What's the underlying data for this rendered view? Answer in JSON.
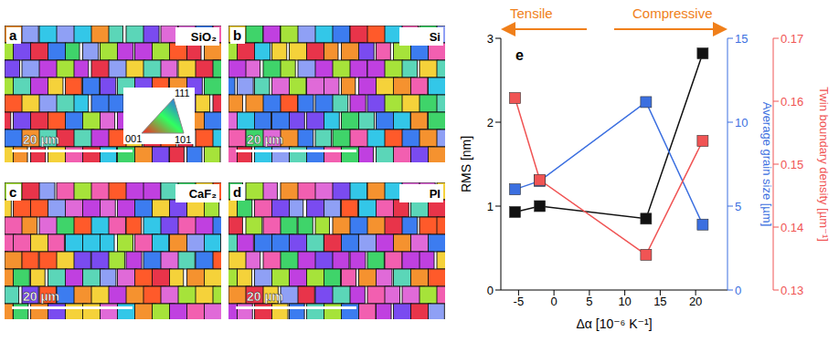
{
  "chart_data": {
    "type": "scatter",
    "title": "e",
    "x_label": "Δα [10⁻⁶ K⁻¹]",
    "y_label": "RMS [nm]",
    "y2_label": "Average grain size [µm]",
    "y3_label": "Twin boundary density [µm⁻¹]",
    "x": [
      -5.5,
      -2,
      13,
      21
    ],
    "xlim": [
      -7.5,
      24.5
    ],
    "xticks": [
      -5,
      0,
      5,
      10,
      15,
      20
    ],
    "ylim": [
      0,
      3
    ],
    "yticks": [
      0,
      1,
      2,
      3
    ],
    "y2lim": [
      0,
      15
    ],
    "y2ticks": [
      0,
      5,
      10,
      15
    ],
    "y3lim": [
      0.13,
      0.17
    ],
    "y3ticks": [
      0.13,
      0.14,
      0.15,
      0.16,
      0.17
    ],
    "series": [
      {
        "name": "RMS",
        "color": "#111111",
        "marker": "square",
        "line_style": "solid",
        "axis": "y",
        "values": [
          0.93,
          1.0,
          0.85,
          2.82
        ]
      },
      {
        "name": "Average grain size",
        "color": "#3b6fe0",
        "marker": "square",
        "line_style": "solid",
        "axis": "y2",
        "values": [
          6.0,
          6.5,
          11.2,
          3.9
        ]
      },
      {
        "name": "Twin boundary density",
        "color": "#f05454",
        "marker": "square",
        "line_style": "solid",
        "axis": "y3",
        "values": [
          0.1605,
          0.1475,
          0.1356,
          0.1537
        ]
      }
    ],
    "annotations": {
      "left_arrow": "Tensile",
      "right_arrow": "Compressive",
      "arrow_color": "#f07f1a"
    }
  },
  "panels": [
    {
      "label": "a",
      "substrate": "SiO₂",
      "scale_bar": "20 µm"
    },
    {
      "label": "b",
      "substrate": "Si",
      "scale_bar": "20 µm"
    },
    {
      "label": "c",
      "substrate": "CaF₂",
      "scale_bar": "20 µm"
    },
    {
      "label": "d",
      "substrate": "PI",
      "scale_bar": "20 µm"
    }
  ],
  "ipf_legend": {
    "top": "111",
    "bottom_left": "001",
    "bottom_right": "101"
  }
}
